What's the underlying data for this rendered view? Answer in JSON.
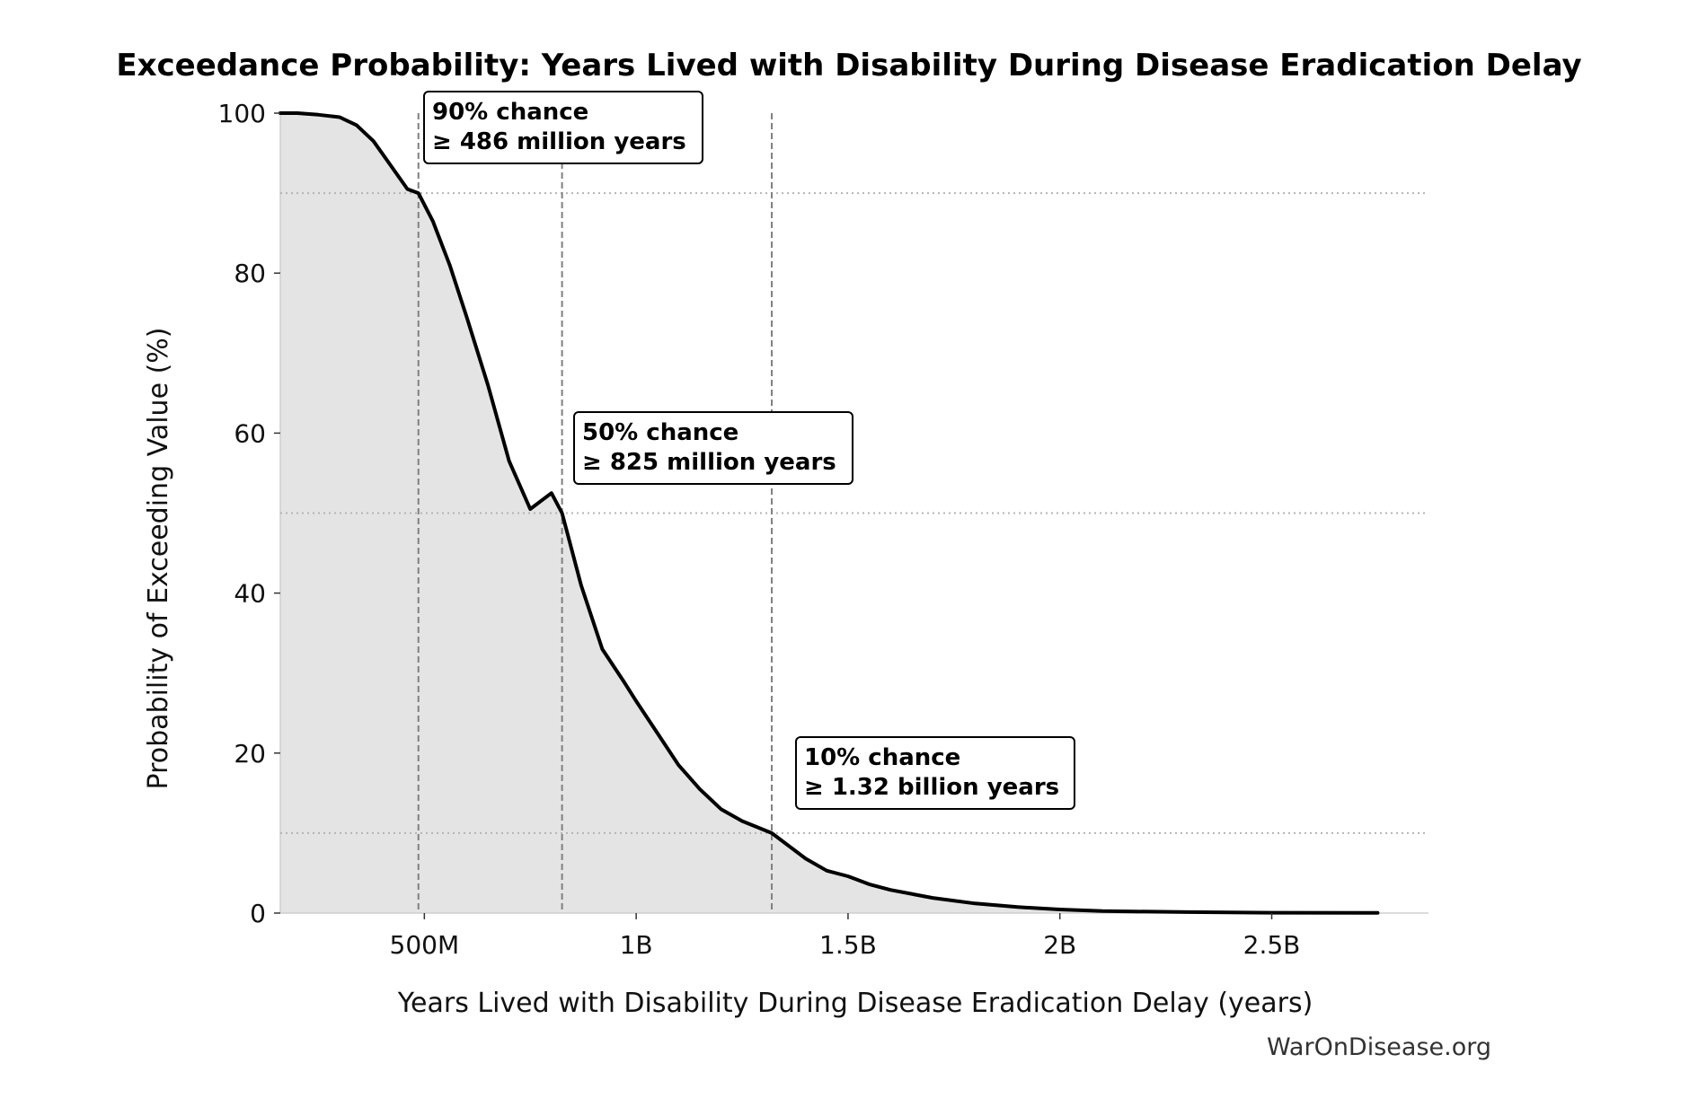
{
  "chart_data": {
    "type": "area",
    "title": "Exceedance Probability: Years Lived with Disability During Disease Eradication Delay",
    "xlabel": "Years Lived with Disability During Disease Eradication Delay (years)",
    "ylabel": "Probability of Exceeding Value (%)",
    "xlim": [
      160000000,
      2870000000
    ],
    "ylim": [
      0,
      100
    ],
    "grid": false,
    "xticks": [
      {
        "value": 500000000,
        "label": "500M"
      },
      {
        "value": 1000000000,
        "label": "1B"
      },
      {
        "value": 1500000000,
        "label": "1.5B"
      },
      {
        "value": 2000000000,
        "label": "2B"
      },
      {
        "value": 2500000000,
        "label": "2.5B"
      }
    ],
    "yticks": [
      {
        "value": 0,
        "label": "0"
      },
      {
        "value": 20,
        "label": "20"
      },
      {
        "value": 40,
        "label": "40"
      },
      {
        "value": 60,
        "label": "60"
      },
      {
        "value": 80,
        "label": "80"
      },
      {
        "value": 100,
        "label": "100"
      }
    ],
    "series": [
      {
        "x": [
          160000000,
          200000000,
          250000000,
          300000000,
          340000000,
          380000000,
          420000000,
          460000000,
          486000000,
          520000000,
          560000000,
          600000000,
          650000000,
          700000000,
          750000000,
          800000000,
          825000000,
          870000000,
          920000000,
          970000000,
          1000000000,
          1050000000,
          1100000000,
          1150000000,
          1200000000,
          1250000000,
          1320000000,
          1400000000,
          1450000000,
          1500000000,
          1550000000,
          1600000000,
          1700000000,
          1800000000,
          1900000000,
          2000000000,
          2100000000,
          2300000000,
          2500000000,
          2750000000
        ],
        "y": [
          100,
          100,
          99.8,
          99.5,
          98.5,
          96.5,
          93.5,
          90.5,
          90,
          86.5,
          81,
          74.5,
          66,
          56.5,
          50.5,
          52.5,
          50,
          41,
          33,
          29,
          26.5,
          22.5,
          18.5,
          15.5,
          13,
          11.5,
          10,
          6.8,
          5.3,
          4.6,
          3.6,
          2.9,
          1.9,
          1.2,
          0.75,
          0.45,
          0.25,
          0.12,
          0.05,
          0.02
        ]
      }
    ],
    "thresholds": [
      {
        "prob": 90,
        "x": 486000000
      },
      {
        "prob": 50,
        "x": 825000000
      },
      {
        "prob": 10,
        "x": 1320000000
      }
    ],
    "annotations": [
      {
        "line1": "90% chance",
        "line2": "≥ 486 million years"
      },
      {
        "line1": "50% chance",
        "line2": "≥ 825 million years"
      },
      {
        "line1": "10% chance",
        "line2": "≥ 1.32 billion years"
      }
    ],
    "credit": "WarOnDisease.org",
    "colors": {
      "line": "#000000",
      "fill": "#e4e4e4",
      "vline": "#808080",
      "hline": "#b4b4b4",
      "axis": "#cfcfcf"
    }
  }
}
